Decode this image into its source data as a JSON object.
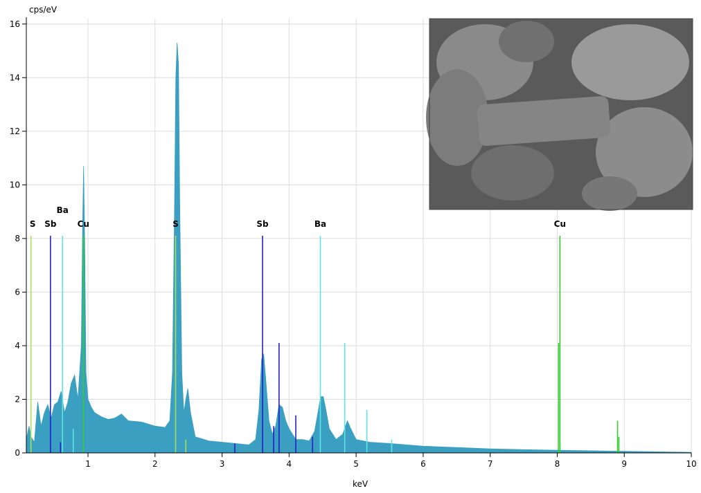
{
  "chart_data": {
    "type": "spectrum",
    "y_label": "cps/eV",
    "x_label": "keV",
    "xlim": [
      0.08,
      10
    ],
    "ylim": [
      0,
      16.2
    ],
    "xticks": [
      1,
      2,
      3,
      4,
      5,
      6,
      7,
      8,
      9,
      10
    ],
    "yticks": [
      0,
      2,
      4,
      6,
      8,
      10,
      12,
      14,
      16
    ],
    "grid": true,
    "color": "#3a9fc0",
    "x": [
      0.08,
      0.12,
      0.15,
      0.2,
      0.25,
      0.3,
      0.35,
      0.4,
      0.45,
      0.5,
      0.55,
      0.6,
      0.65,
      0.7,
      0.75,
      0.8,
      0.85,
      0.9,
      0.92,
      0.935,
      0.95,
      0.97,
      1.0,
      1.05,
      1.1,
      1.2,
      1.3,
      1.4,
      1.5,
      1.6,
      1.8,
      2.0,
      2.15,
      2.22,
      2.26,
      2.29,
      2.31,
      2.33,
      2.35,
      2.37,
      2.4,
      2.43,
      2.46,
      2.49,
      2.53,
      2.6,
      2.8,
      3.0,
      3.2,
      3.4,
      3.5,
      3.55,
      3.59,
      3.62,
      3.65,
      3.7,
      3.75,
      3.8,
      3.85,
      3.9,
      3.95,
      4.0,
      4.1,
      4.2,
      4.3,
      4.38,
      4.43,
      4.47,
      4.51,
      4.55,
      4.6,
      4.7,
      4.8,
      4.87,
      4.92,
      5.0,
      5.2,
      5.5,
      6.0,
      6.5,
      7.0,
      7.5,
      8.0,
      8.5,
      9.0,
      9.5,
      10.0
    ],
    "values": [
      0.5,
      1.0,
      0.6,
      0.4,
      1.9,
      1.0,
      1.5,
      1.8,
      1.3,
      1.8,
      1.9,
      2.3,
      1.5,
      1.9,
      2.6,
      2.9,
      2.0,
      4.0,
      8.5,
      10.7,
      8.0,
      3.0,
      2.0,
      1.7,
      1.5,
      1.35,
      1.25,
      1.3,
      1.45,
      1.2,
      1.15,
      1.0,
      0.95,
      1.2,
      3.0,
      9.0,
      14.0,
      15.3,
      14.5,
      9.0,
      3.0,
      1.5,
      2.0,
      2.4,
      1.5,
      0.6,
      0.45,
      0.4,
      0.35,
      0.3,
      0.5,
      1.6,
      3.5,
      3.7,
      2.8,
      1.2,
      0.7,
      1.0,
      1.8,
      1.7,
      1.2,
      0.9,
      0.5,
      0.5,
      0.45,
      0.8,
      1.5,
      2.1,
      2.1,
      1.6,
      0.9,
      0.5,
      0.7,
      1.2,
      0.9,
      0.5,
      0.4,
      0.35,
      0.25,
      0.2,
      0.15,
      0.12,
      0.1,
      0.08,
      0.06,
      0.04,
      0.02
    ],
    "element_lines": [
      {
        "color": "#a6e05a",
        "x": [
          0.149,
          2.307,
          2.46
        ],
        "values": [
          8.1,
          8.1,
          0.5
        ]
      },
      {
        "color": "#2222c8",
        "x": [
          0.44,
          3.604,
          3.85,
          3.19,
          3.77,
          4.1,
          4.35,
          0.59
        ],
        "values": [
          8.1,
          8.1,
          4.1,
          0.35,
          1.0,
          1.4,
          0.6,
          0.4
        ]
      },
      {
        "color": "#5ce5e5",
        "x": [
          0.62,
          4.466,
          4.83,
          5.16,
          5.53,
          0.78
        ],
        "values": [
          8.1,
          8.1,
          4.1,
          1.6,
          0.5,
          0.9
        ]
      },
      {
        "color": "#33cc33",
        "x": [
          0.93,
          8.04,
          8.02,
          8.9,
          8.92
        ],
        "values": [
          8.1,
          8.1,
          4.1,
          1.2,
          0.6
        ]
      }
    ],
    "annotations": [
      {
        "text": "S",
        "x": 0.175,
        "y": 8.44
      },
      {
        "text": "Sb",
        "x": 0.44,
        "y": 8.44
      },
      {
        "text": "Ba",
        "x": 0.62,
        "y": 8.95
      },
      {
        "text": "Cu",
        "x": 0.93,
        "y": 8.44
      },
      {
        "text": "S",
        "x": 2.307,
        "y": 8.44
      },
      {
        "text": "Sb",
        "x": 3.604,
        "y": 8.44
      },
      {
        "text": "Ba",
        "x": 4.466,
        "y": 8.44
      },
      {
        "text": "Cu",
        "x": 8.04,
        "y": 8.44
      }
    ]
  }
}
